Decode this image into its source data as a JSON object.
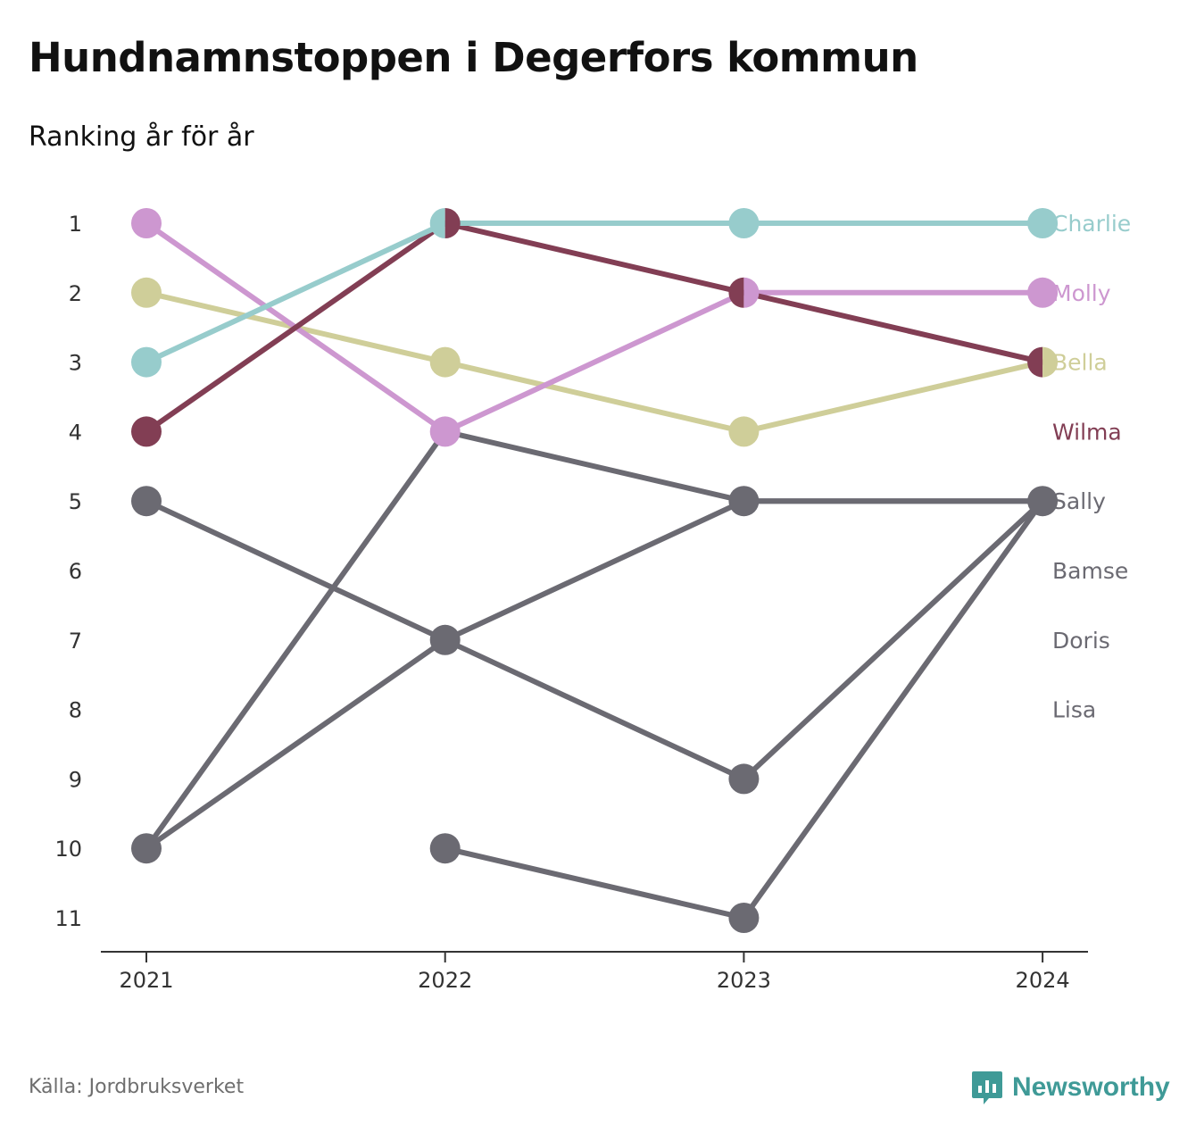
{
  "title": "Hundnamnstoppen i Degerfors kommun",
  "subtitle": "Ranking år för år",
  "source": "Källa: Jordbruksverket",
  "brand": {
    "name": "Newsworthy",
    "icon": "newsworthy-logo-icon",
    "color": "#3f9a97"
  },
  "chart_data": {
    "type": "line",
    "chart_subtype": "bump",
    "x": [
      "2021",
      "2022",
      "2023",
      "2024"
    ],
    "y_ticks": [
      1,
      2,
      3,
      4,
      5,
      6,
      7,
      8,
      9,
      10,
      11
    ],
    "y_inverted": true,
    "ylim": [
      1,
      11
    ],
    "grid": false,
    "legend": "end labels on right",
    "series": [
      {
        "name": "Lisa",
        "color": "#6b6a72",
        "values": [
          null,
          10,
          11,
          5
        ]
      },
      {
        "name": "Doris",
        "color": "#6b6a72",
        "values": [
          10,
          7,
          5,
          5
        ]
      },
      {
        "name": "Bamse",
        "color": "#6b6a72",
        "values": [
          5,
          7,
          9,
          5
        ]
      },
      {
        "name": "Sally",
        "color": "#6b6a72",
        "values": [
          10,
          4,
          5,
          5
        ]
      },
      {
        "name": "Bella",
        "color": "#cfce99",
        "values": [
          2,
          3,
          4,
          3
        ]
      },
      {
        "name": "Molly",
        "color": "#cd97d0",
        "values": [
          1,
          4,
          2,
          2
        ]
      },
      {
        "name": "Wilma",
        "color": "#823e54",
        "values": [
          4,
          1,
          2,
          3
        ]
      },
      {
        "name": "Charlie",
        "color": "#97cccc",
        "values": [
          3,
          1,
          1,
          1
        ]
      }
    ],
    "end_labels": [
      {
        "name": "Charlie",
        "rank": 1,
        "color": "#97cccc"
      },
      {
        "name": "Molly",
        "rank": 2,
        "color": "#cd97d0"
      },
      {
        "name": "Bella",
        "rank": 3,
        "color": "#cfce99"
      },
      {
        "name": "Wilma",
        "rank": 4,
        "color": "#823e54"
      },
      {
        "name": "Sally",
        "rank": 5,
        "color": "#6b6a72"
      },
      {
        "name": "Bamse",
        "rank": 6,
        "color": "#6b6a72"
      },
      {
        "name": "Doris",
        "rank": 7,
        "color": "#6b6a72"
      },
      {
        "name": "Lisa",
        "rank": 8,
        "color": "#6b6a72"
      }
    ]
  }
}
